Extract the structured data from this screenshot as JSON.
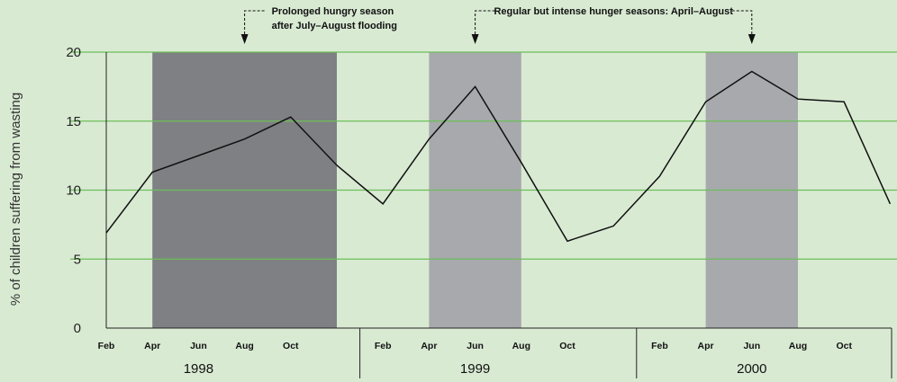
{
  "chart_data": {
    "type": "line",
    "ylabel": "% of children suffering from wasting",
    "ylim": [
      0,
      20
    ],
    "yticks": [
      0,
      5,
      10,
      15,
      20
    ],
    "grid": true,
    "x_start": "1998-02",
    "month_labels": [
      "Feb",
      "Apr",
      "Jun",
      "Aug",
      "Oct"
    ],
    "years": [
      "1998",
      "1999",
      "2000"
    ],
    "x": [
      "1998-02",
      "1998-04",
      "1998-06",
      "1998-08",
      "1998-10",
      "1998-12",
      "1999-02",
      "1999-04",
      "1999-06",
      "1999-08",
      "1999-10",
      "1999-12",
      "2000-02",
      "2000-04",
      "2000-06",
      "2000-08",
      "2000-10",
      "2000-12"
    ],
    "values": [
      6.9,
      11.3,
      12.5,
      13.7,
      15.3,
      11.8,
      9.0,
      13.7,
      17.5,
      12.0,
      6.3,
      7.4,
      11.0,
      16.4,
      18.6,
      16.6,
      16.4,
      9.0
    ],
    "shaded_periods": [
      {
        "start": "1998-04",
        "end": "1998-12",
        "style": "dark",
        "color": "#7f8083"
      },
      {
        "start": "1999-04",
        "end": "1999-08",
        "style": "light",
        "color": "#a7a9ac"
      },
      {
        "start": "2000-04",
        "end": "2000-08",
        "style": "light",
        "color": "#a7a9ac"
      }
    ],
    "annotations": [
      {
        "text": "Prolonged hungry season",
        "text2": "after July–August flooding",
        "arrow_at": "1998-08"
      },
      {
        "text": "Regular but intense hunger seasons: April–August",
        "arrow_at": [
          "1999-06",
          "2000-06"
        ]
      }
    ],
    "colors": {
      "background": "#d9ead3",
      "grid": "#6bbf59",
      "line": "#111111"
    }
  }
}
